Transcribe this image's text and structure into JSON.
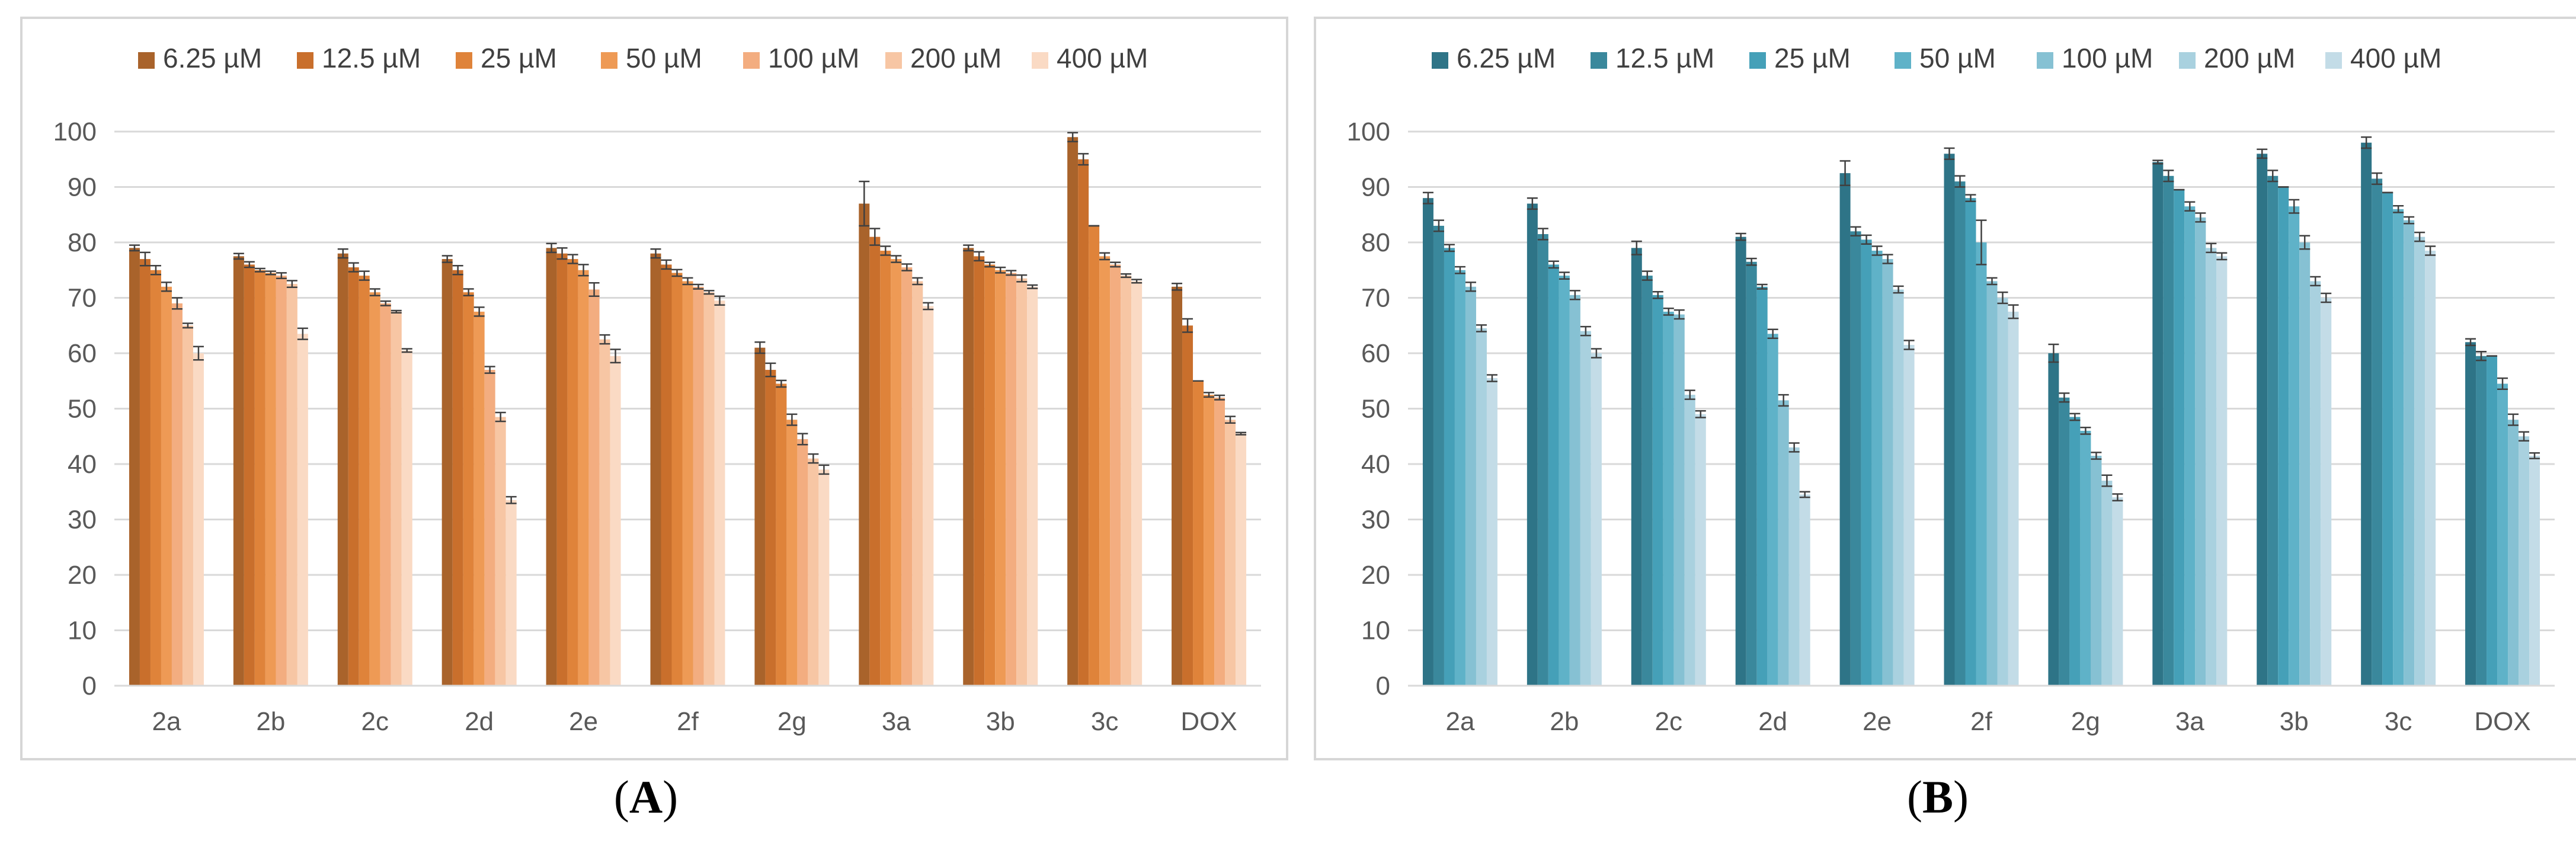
{
  "panels": [
    {
      "id": "A",
      "label": "A",
      "colors": [
        "#a9632b",
        "#c96f2c",
        "#df833a",
        "#ee9a55",
        "#f3ad80",
        "#f7c6a4",
        "#fadac4"
      ]
    },
    {
      "id": "B",
      "label": "B",
      "colors": [
        "#2e7487",
        "#3a889c",
        "#45a0b8",
        "#5fb2c8",
        "#86c1d3",
        "#a9d1df",
        "#c3dce7"
      ]
    }
  ],
  "chart_data": [
    {
      "type": "bar",
      "title": "",
      "xlabel": "",
      "ylabel": "",
      "ylim": [
        0,
        100
      ],
      "yticks": [
        0,
        10,
        20,
        30,
        40,
        50,
        60,
        70,
        80,
        90,
        100
      ],
      "grid": true,
      "legend_position": "top",
      "categories": [
        "2a",
        "2b",
        "2c",
        "2d",
        "2e",
        "2f",
        "2g",
        "3a",
        "3b",
        "3c",
        "DOX"
      ],
      "series": [
        {
          "name": "6.25 µM",
          "values": [
            79,
            77.5,
            78,
            77,
            79,
            78,
            61,
            87,
            79,
            99,
            72
          ],
          "errors": [
            0.5,
            0.5,
            0.8,
            0.6,
            0.8,
            0.8,
            1,
            4,
            0.5,
            0.8,
            0.6
          ]
        },
        {
          "name": "12.5 µM",
          "values": [
            77,
            76,
            75.5,
            75,
            78,
            76,
            57,
            81,
            77.5,
            95,
            65
          ],
          "errors": [
            1.2,
            0.5,
            0.8,
            0.8,
            1,
            0.8,
            1.2,
            1.5,
            0.8,
            1,
            1.2
          ]
        },
        {
          "name": "25 µM",
          "values": [
            75,
            75,
            74,
            71,
            77,
            74.5,
            54.5,
            78.5,
            76,
            83,
            55
          ],
          "errors": [
            0.8,
            0.3,
            0.8,
            0.6,
            0.8,
            0.6,
            0.6,
            0.8,
            0.4,
            0,
            0
          ]
        },
        {
          "name": "50 µM",
          "values": [
            72,
            74.5,
            71,
            67.5,
            75,
            73,
            48,
            77,
            75,
            77.5,
            52.5
          ],
          "errors": [
            0.8,
            0.3,
            0.6,
            0.8,
            1,
            0.6,
            1,
            0.6,
            0.5,
            0.6,
            0.4
          ]
        },
        {
          "name": "100 µM",
          "values": [
            69,
            74,
            69,
            57,
            71.5,
            72,
            44.5,
            75.5,
            74.5,
            76,
            52
          ],
          "errors": [
            1,
            0.5,
            0.4,
            0.6,
            1.2,
            0.4,
            1,
            0.6,
            0.4,
            0.4,
            0.4
          ]
        },
        {
          "name": "200 µM",
          "values": [
            65,
            72.5,
            67.5,
            48.5,
            62.5,
            71,
            41,
            73,
            73.5,
            74,
            48
          ],
          "errors": [
            0.4,
            0.6,
            0.2,
            0.8,
            0.8,
            0.3,
            0.8,
            0.6,
            0.6,
            0.3,
            0.6
          ]
        },
        {
          "name": "400 µM",
          "values": [
            60,
            63.5,
            60.5,
            33.5,
            59.5,
            69.5,
            39,
            68.5,
            72,
            73,
            45.5
          ],
          "errors": [
            1.2,
            1,
            0.3,
            0.6,
            1.2,
            0.8,
            0.8,
            0.6,
            0.3,
            0.3,
            0.2
          ]
        }
      ]
    },
    {
      "type": "bar",
      "title": "",
      "xlabel": "",
      "ylabel": "",
      "ylim": [
        0,
        100
      ],
      "yticks": [
        0,
        10,
        20,
        30,
        40,
        50,
        60,
        70,
        80,
        90,
        100
      ],
      "grid": true,
      "legend_position": "top",
      "categories": [
        "2a",
        "2b",
        "2c",
        "2d",
        "2e",
        "2f",
        "2g",
        "3a",
        "3b",
        "3c",
        "DOX"
      ],
      "series": [
        {
          "name": "6.25 µM",
          "values": [
            88,
            87,
            79,
            81,
            92.5,
            96,
            60,
            94.5,
            96,
            98,
            62
          ],
          "errors": [
            1,
            1,
            1.2,
            0.6,
            2.2,
            1,
            1.6,
            0.3,
            0.8,
            1,
            0.6
          ]
        },
        {
          "name": "12.5 µM",
          "values": [
            83,
            81.5,
            74,
            76.5,
            82,
            91,
            52,
            92,
            92,
            91.5,
            59.5
          ],
          "errors": [
            1,
            1,
            0.8,
            0.6,
            0.8,
            1,
            0.8,
            1,
            1,
            1,
            0.8
          ]
        },
        {
          "name": "25 µM",
          "values": [
            79,
            76,
            70.5,
            72,
            80.5,
            88,
            48.5,
            89.5,
            90,
            89,
            59.5
          ],
          "errors": [
            0.6,
            0.6,
            0.6,
            0.4,
            0.8,
            0.6,
            0.6,
            0,
            0,
            0,
            0
          ]
        },
        {
          "name": "50 µM",
          "values": [
            75,
            74,
            67.5,
            63.5,
            78.5,
            80,
            46,
            86.5,
            86.5,
            86,
            54.5
          ],
          "errors": [
            0.6,
            0.6,
            0.6,
            0.8,
            0.8,
            4,
            0.6,
            0.8,
            1.2,
            0.6,
            1
          ]
        },
        {
          "name": "100 µM",
          "values": [
            72,
            70.5,
            67,
            51.5,
            77,
            73,
            41.5,
            84.5,
            80,
            84,
            48
          ],
          "errors": [
            0.8,
            0.8,
            0.8,
            1,
            0.8,
            0.6,
            0.6,
            0.8,
            1.2,
            0.6,
            1
          ]
        },
        {
          "name": "200 µM",
          "values": [
            64.5,
            64,
            52.5,
            43,
            71.5,
            70,
            37,
            79,
            73,
            81,
            45
          ],
          "errors": [
            0.6,
            0.8,
            0.8,
            0.8,
            0.6,
            1,
            1,
            0.8,
            0.8,
            0.8,
            0.8
          ]
        },
        {
          "name": "400 µM",
          "values": [
            55.5,
            60,
            49,
            34.5,
            61.5,
            67.5,
            34,
            77.5,
            70,
            78.5,
            41.5
          ],
          "errors": [
            0.6,
            0.8,
            0.6,
            0.5,
            0.8,
            1.2,
            0.6,
            0.6,
            0.8,
            0.8,
            0.5
          ]
        }
      ]
    }
  ]
}
